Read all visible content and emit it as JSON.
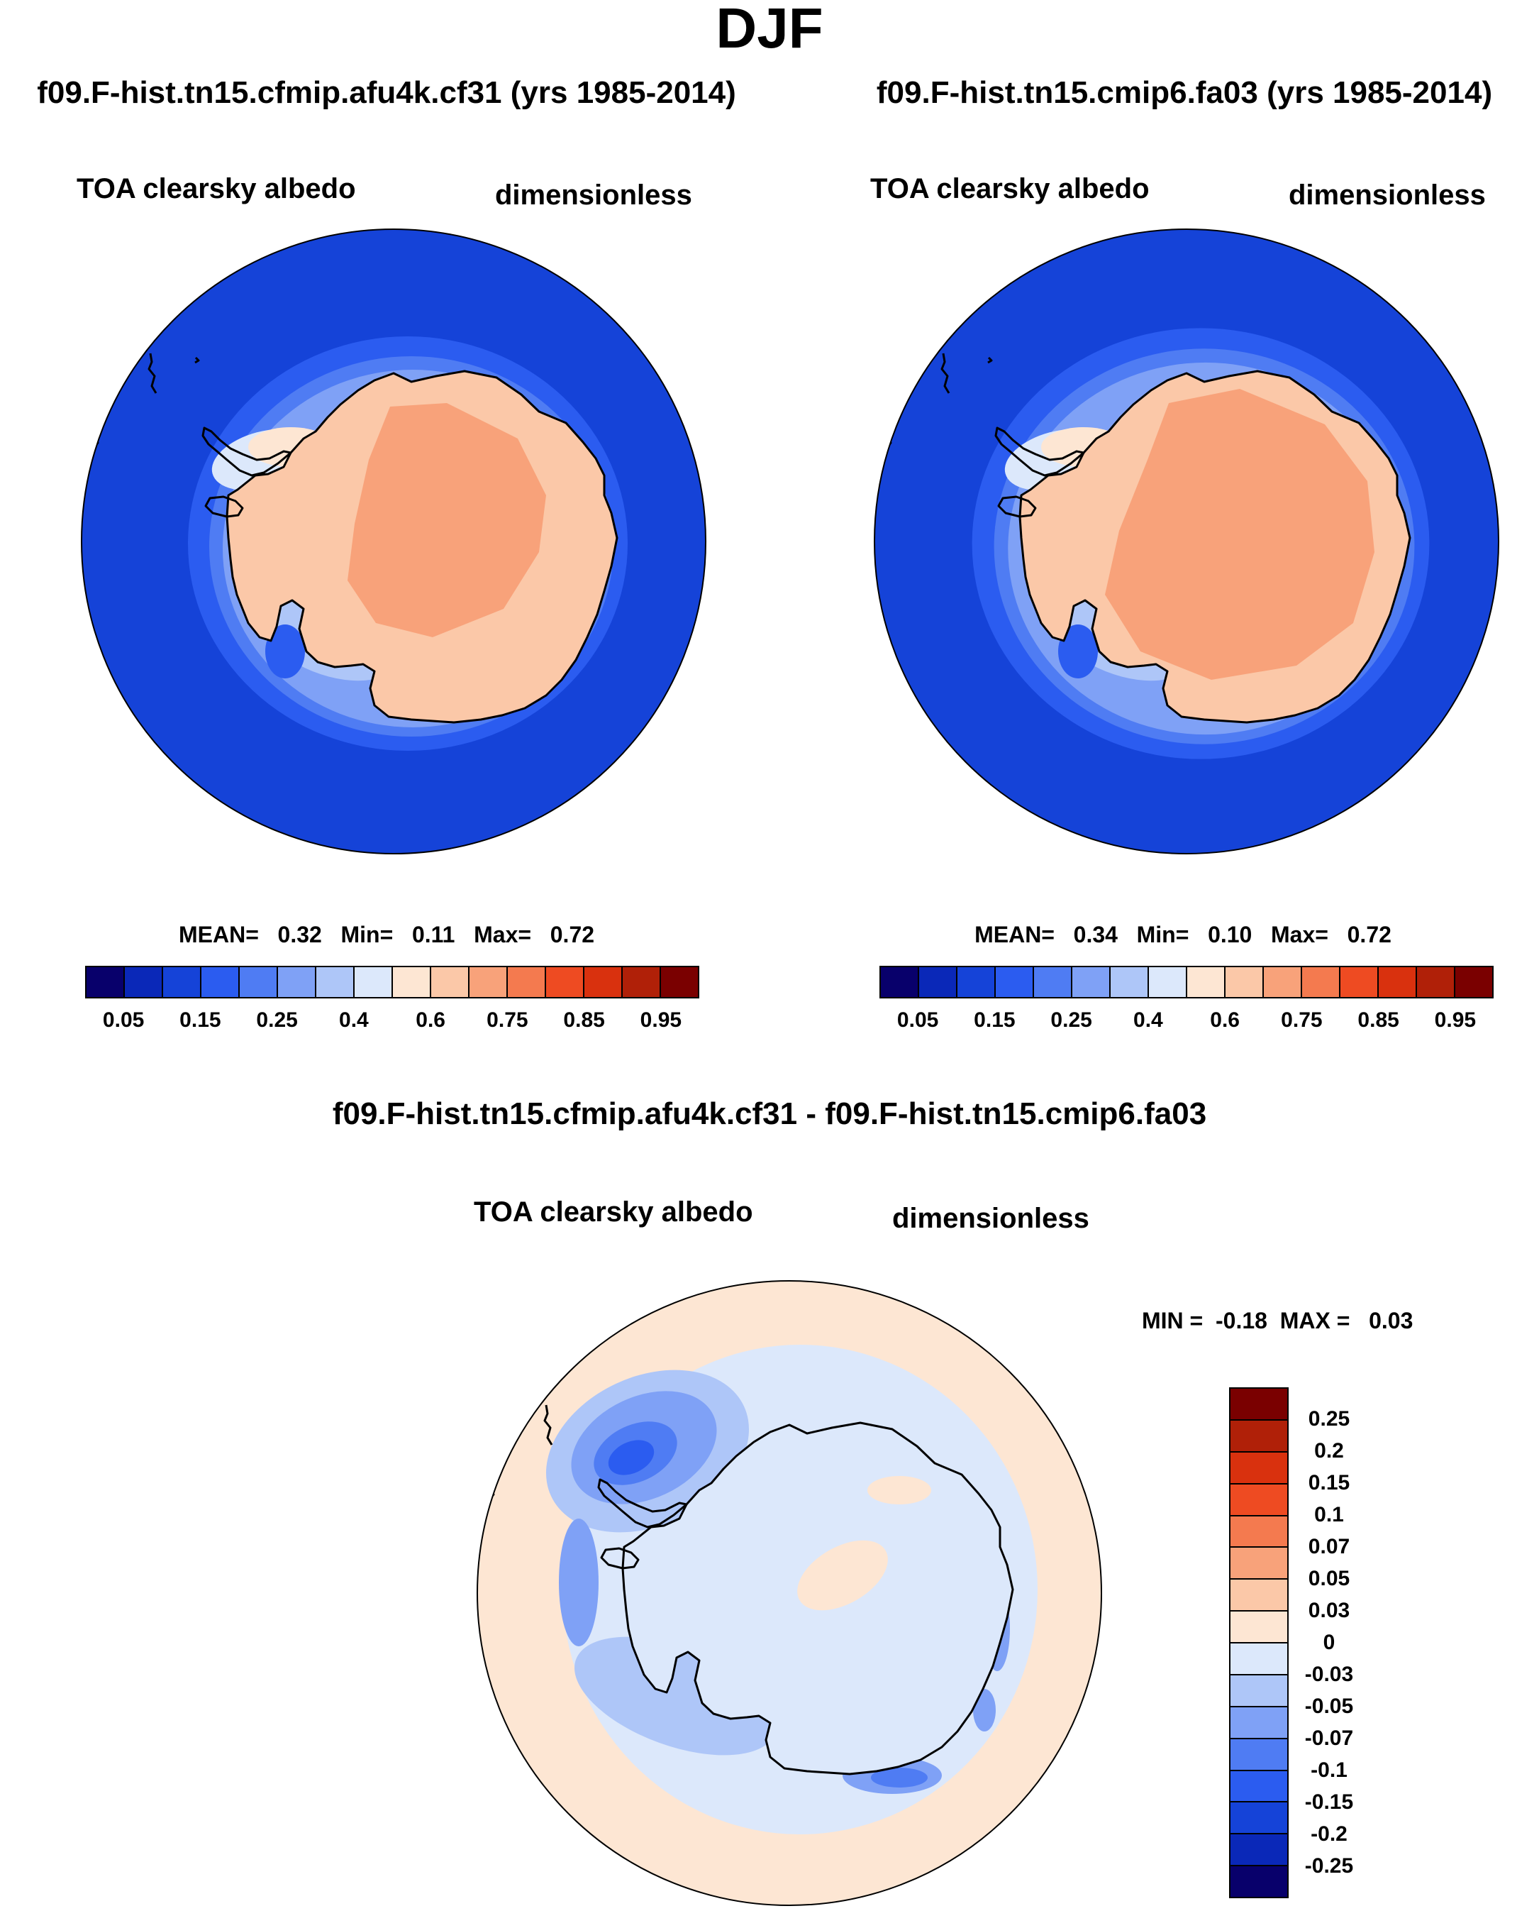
{
  "season": "DJF",
  "panels": {
    "case1": {
      "run_title": "f09.F-hist.tn15.cfmip.afu4k.cf31 (yrs 1985-2014)",
      "variable": "TOA clearsky albedo",
      "units": "dimensionless",
      "stats": {
        "mean_label": "MEAN=",
        "mean": "0.32",
        "min_label": "Min=",
        "min": "0.11",
        "max_label": "Max=",
        "max": "0.72"
      }
    },
    "case2": {
      "run_title": "f09.F-hist.tn15.cmip6.fa03 (yrs 1985-2014)",
      "variable": "TOA clearsky albedo",
      "units": "dimensionless",
      "stats": {
        "mean_label": "MEAN=",
        "mean": "0.34",
        "min_label": "Min=",
        "min": "0.10",
        "max_label": "Max=",
        "max": "0.72"
      }
    },
    "diff": {
      "run_title": "f09.F-hist.tn15.cfmip.afu4k.cf31 - f09.F-hist.tn15.cmip6.fa03",
      "variable": "TOA clearsky albedo",
      "units": "dimensionless",
      "stats": {
        "min_label": "MIN =",
        "min": "-0.18",
        "max_label": "MAX =",
        "max": "0.03"
      }
    }
  },
  "chart_data": [
    {
      "type": "heatmap",
      "projection": "south-polar-stereographic",
      "title": "f09.F-hist.tn15.cfmip.afu4k.cf31 (yrs 1985-2014)",
      "variable": "TOA clearsky albedo",
      "units": "dimensionless",
      "mean": 0.32,
      "min": 0.11,
      "max": 0.72,
      "legend_position": "bottom",
      "levels": [
        "0.05",
        "0.15",
        "0.25",
        "0.4",
        "0.6",
        "0.75",
        "0.85",
        "0.95"
      ],
      "colors": [
        "#08006b",
        "#0a28b8",
        "#1543d8",
        "#2b5cf0",
        "#4f7cf3",
        "#7fa1f6",
        "#aec6f8",
        "#dce8fb",
        "#fde6d3",
        "#fbc8a8",
        "#f8a27a",
        "#f47a4f",
        "#ee4b22",
        "#d9310e",
        "#b02008",
        "#7a0000"
      ]
    },
    {
      "type": "heatmap",
      "projection": "south-polar-stereographic",
      "title": "f09.F-hist.tn15.cmip6.fa03 (yrs 1985-2014)",
      "variable": "TOA clearsky albedo",
      "units": "dimensionless",
      "mean": 0.34,
      "min": 0.1,
      "max": 0.72,
      "legend_position": "bottom",
      "levels": [
        "0.05",
        "0.15",
        "0.25",
        "0.4",
        "0.6",
        "0.75",
        "0.85",
        "0.95"
      ],
      "colors": [
        "#08006b",
        "#0a28b8",
        "#1543d8",
        "#2b5cf0",
        "#4f7cf3",
        "#7fa1f6",
        "#aec6f8",
        "#dce8fb",
        "#fde6d3",
        "#fbc8a8",
        "#f8a27a",
        "#f47a4f",
        "#ee4b22",
        "#d9310e",
        "#b02008",
        "#7a0000"
      ]
    },
    {
      "type": "heatmap",
      "projection": "south-polar-stereographic",
      "title": "f09.F-hist.tn15.cfmip.afu4k.cf31 - f09.F-hist.tn15.cmip6.fa03",
      "variable": "TOA clearsky albedo",
      "units": "dimensionless",
      "min": -0.18,
      "max": 0.03,
      "legend_position": "right",
      "levels": [
        "0.25",
        "0.2",
        "0.15",
        "0.1",
        "0.07",
        "0.05",
        "0.03",
        "0",
        "-0.03",
        "-0.05",
        "-0.07",
        "-0.1",
        "-0.15",
        "-0.2",
        "-0.25"
      ],
      "colors": [
        "#7a0000",
        "#b02008",
        "#d9310e",
        "#ee4b22",
        "#f47a4f",
        "#f8a27a",
        "#fbc8a8",
        "#fde6d3",
        "#dce8fb",
        "#aec6f8",
        "#7fa1f6",
        "#4f7cf3",
        "#2b5cf0",
        "#1543d8",
        "#0a28b8",
        "#08006b"
      ]
    }
  ]
}
